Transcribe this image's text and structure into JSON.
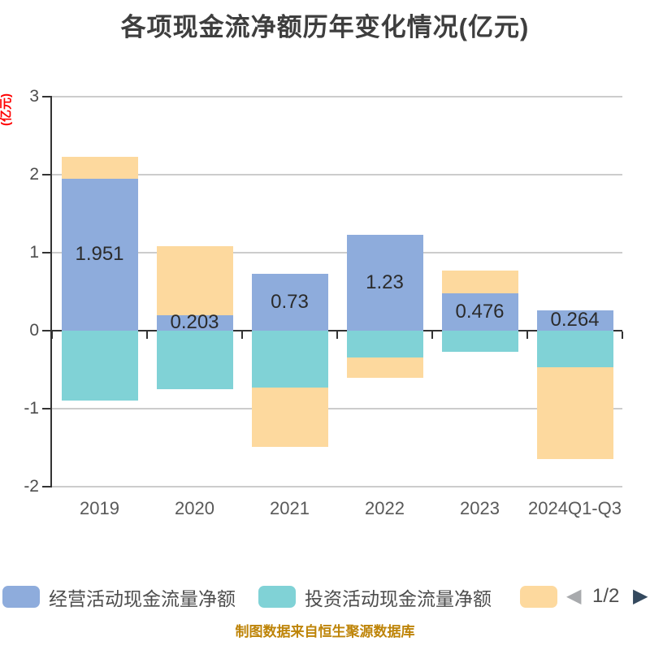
{
  "title": "各项现金流净额历年变化情况(亿元)",
  "y_axis_name": "(亿元)",
  "footer": "制图数据来自恒生聚源数据库",
  "colors": {
    "operating_blue": "#8EACDC",
    "investing_teal": "#80D2D6",
    "financing_orange": "#FDD99E",
    "title_text": "#3E3E3E",
    "axis_text": "#4D4D4D",
    "x_axis_text": "#595959",
    "value_label_text": "#2B2B2B",
    "y_axis_name_red": "#FF0000",
    "grid_line": "#CCCCCC",
    "axis_line": "#333333",
    "footer_text": "#BE8408",
    "pager_prev": "#A8AAAD",
    "pager_next": "#34495E"
  },
  "legend": {
    "items": [
      {
        "label": "经营活动现金流量净额",
        "color": "#8EACDC"
      },
      {
        "label": "投资活动现金流量净额",
        "color": "#80D2D6"
      },
      {
        "label": "",
        "color": "#FDD99E"
      }
    ],
    "pager": {
      "prev_icon": "◀",
      "next_icon": "▶",
      "text": "1/2"
    }
  },
  "chart_data": {
    "type": "bar",
    "stacked": true,
    "title": "各项现金流净额历年变化情况(亿元)",
    "xlabel": "",
    "ylabel": "(亿元)",
    "ylim": [
      -2,
      3
    ],
    "yticks": [
      3,
      2,
      1,
      0,
      -1,
      -2
    ],
    "ytick_labels": [
      "3",
      "2",
      "1",
      "0",
      "-1",
      "-2"
    ],
    "grid": true,
    "legend_position": "bottom",
    "categories": [
      "2019",
      "2020",
      "2021",
      "2022",
      "2023",
      "2024Q1-Q3"
    ],
    "series": [
      {
        "name": "经营活动现金流量净额",
        "color": "#8EACDC",
        "values": [
          1.951,
          0.203,
          0.73,
          1.23,
          0.476,
          0.264
        ],
        "labels": [
          "1.951",
          "0.203",
          "0.73",
          "1.23",
          "0.476",
          "0.264"
        ]
      },
      {
        "name": "投资活动现金流量净额",
        "color": "#80D2D6",
        "values": [
          -0.9,
          -0.75,
          -0.73,
          -0.34,
          -0.27,
          -0.47
        ]
      },
      {
        "name": "",
        "color": "#FDD99E",
        "values": [
          0.28,
          0.88,
          -0.76,
          -0.26,
          0.29,
          -1.18
        ]
      }
    ]
  }
}
